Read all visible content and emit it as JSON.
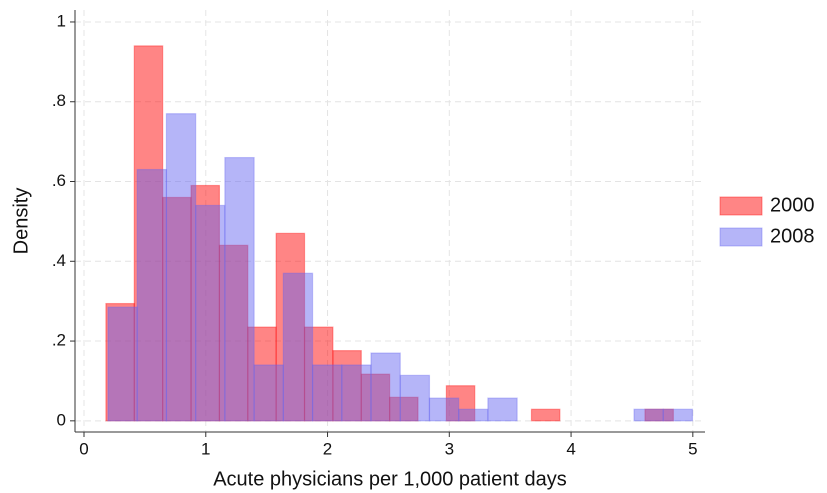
{
  "chart_data": {
    "type": "histogram",
    "x_label": "Acute physicians per 1,000 patient days",
    "y_label": "Density",
    "xlim": [
      -0.074,
      5.1
    ],
    "ylim": [
      -0.028,
      1.03
    ],
    "xticks": [
      0,
      1,
      2,
      3,
      4,
      5
    ],
    "yticks": [
      0,
      {
        "value": 0.2,
        "label": ".2"
      },
      {
        "value": 0.4,
        "label": ".4"
      },
      {
        "value": 0.6,
        "label": ".6"
      },
      {
        "value": 0.8,
        "label": ".8"
      },
      1
    ],
    "grid": true,
    "legend": "right",
    "series": [
      {
        "name": "2000",
        "color": "#ff0000",
        "bins": [
          0.18,
          0.413,
          0.646,
          0.879,
          1.112,
          1.345,
          1.578,
          1.811,
          2.044,
          2.277,
          2.51,
          2.743,
          2.976,
          3.209,
          3.442,
          3.675,
          3.908,
          4.141,
          4.374,
          4.607,
          4.84
        ],
        "values": [
          0.294,
          0.94,
          0.56,
          0.59,
          0.44,
          0.235,
          0.47,
          0.235,
          0.176,
          0.117,
          0.059,
          0,
          0.088,
          0,
          0,
          0.029,
          0,
          0,
          0,
          0.029
        ]
      },
      {
        "name": "2008",
        "color": "#6464f0",
        "bins": [
          0.197,
          0.437,
          0.677,
          0.917,
          1.157,
          1.397,
          1.637,
          1.877,
          2.117,
          2.357,
          2.597,
          2.837,
          3.077,
          3.317,
          3.557,
          3.797,
          4.037,
          4.277,
          4.517,
          4.757,
          4.997
        ],
        "values": [
          0.285,
          0.63,
          0.77,
          0.54,
          0.66,
          0.14,
          0.37,
          0.14,
          0.14,
          0.17,
          0.114,
          0.057,
          0.029,
          0.057,
          0,
          0,
          0,
          0,
          0.029,
          0.029
        ]
      }
    ]
  }
}
